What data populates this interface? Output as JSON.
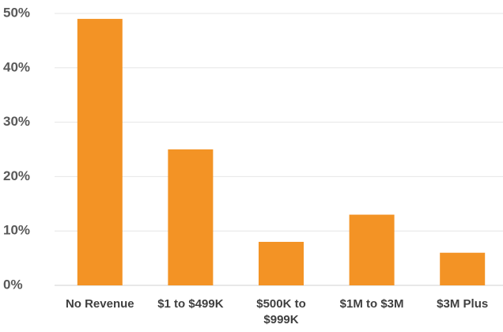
{
  "chart_data": {
    "type": "bar",
    "categories": [
      "No Revenue",
      "$1 to $499K",
      "$500K to $999K",
      "$1M to $3M",
      "$3M Plus"
    ],
    "values": [
      49,
      25,
      8,
      13,
      6
    ],
    "color": "#f39325",
    "ylim": [
      0,
      50
    ],
    "yticks": [
      {
        "value": 0,
        "label": "0%"
      },
      {
        "value": 10,
        "label": "10%"
      },
      {
        "value": 20,
        "label": "20%"
      },
      {
        "value": 30,
        "label": "30%"
      },
      {
        "value": 40,
        "label": "40%"
      },
      {
        "value": 50,
        "label": "50%"
      }
    ],
    "grid": true
  }
}
